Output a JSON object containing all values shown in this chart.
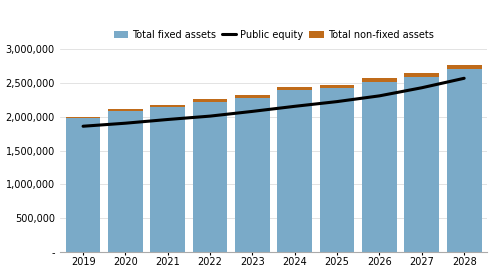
{
  "years": [
    2019,
    2020,
    2021,
    2022,
    2023,
    2024,
    2025,
    2026,
    2027,
    2028
  ],
  "fixed_assets": [
    1980000,
    2080000,
    2150000,
    2215000,
    2280000,
    2390000,
    2430000,
    2520000,
    2590000,
    2700000
  ],
  "non_fixed_assets": [
    20000,
    30000,
    30000,
    55000,
    45000,
    50000,
    45000,
    50000,
    55000,
    60000
  ],
  "public_equity": [
    1860000,
    1905000,
    1960000,
    2010000,
    2080000,
    2155000,
    2225000,
    2310000,
    2430000,
    2570000
  ],
  "bar_fixed_color": "#7aaac8",
  "bar_nonfixed_color": "#bf6b1a",
  "line_color": "#000000",
  "legend_labels": [
    "Total non-fixed assets",
    "Total fixed assets",
    "Public equity"
  ],
  "ylim": [
    0,
    3000000
  ],
  "yticks": [
    0,
    500000,
    1000000,
    1500000,
    2000000,
    2500000,
    3000000
  ],
  "background_color": "#ffffff",
  "plot_bg_color": "#ffffff",
  "figsize": [
    4.93,
    2.73
  ],
  "dpi": 100
}
